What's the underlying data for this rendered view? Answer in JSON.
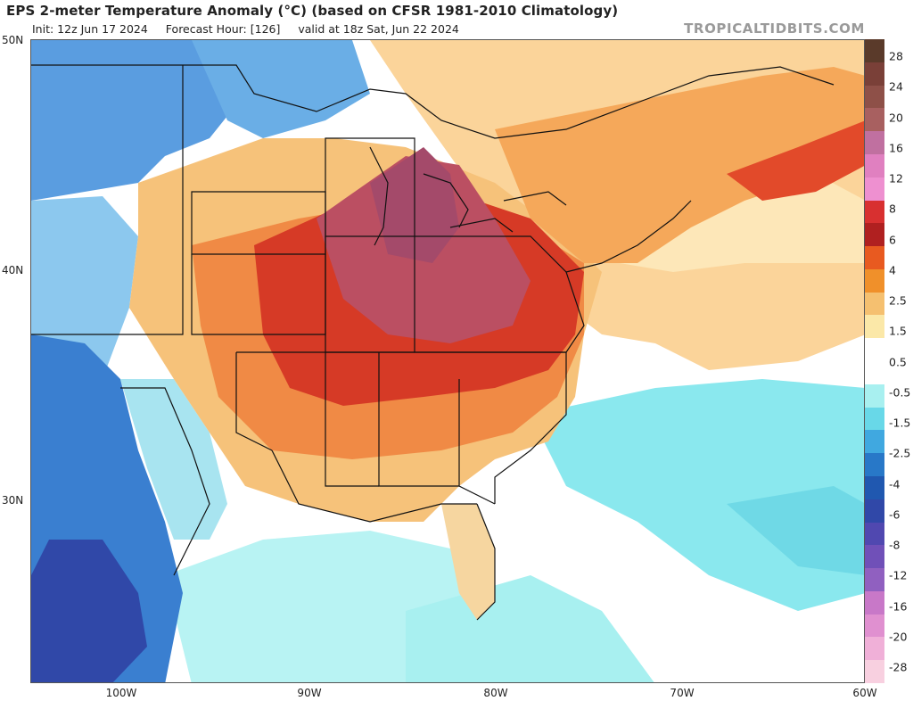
{
  "header": {
    "title": "EPS 2-meter Temperature Anomaly (°C) (based on CFSR 1981-2010 Climatology)",
    "init": "Init: 12z Jun 17 2024",
    "forecast_hour": "Forecast Hour: [126]",
    "valid": "valid at 18z Sat, Jun 22 2024",
    "site": "TROPICALTIDBITS.COM"
  },
  "axes": {
    "lat_labels": [
      "50N",
      "40N",
      "30N"
    ],
    "lon_labels": [
      "100W",
      "90W",
      "80W",
      "70W",
      "60W"
    ]
  },
  "colorbar": {
    "labels": [
      "28",
      "24",
      "20",
      "16",
      "12",
      "8",
      "6",
      "4",
      "2.5",
      "1.5",
      "0.5",
      "-0.5",
      "-1.5",
      "-2.5",
      "-4",
      "-6",
      "-8",
      "-12",
      "-16",
      "-20",
      "-28"
    ],
    "colors": [
      "#5a3a2a",
      "#7a4038",
      "#8e5048",
      "#a86060",
      "#c070a0",
      "#e080c0",
      "#ee90d0",
      "#d83030",
      "#b02020",
      "#e85a20",
      "#f0902a",
      "#f5c070",
      "#fbe8a8",
      "#ffffff",
      "#ffffff",
      "#a8f0f0",
      "#68d8e8",
      "#40a8e0",
      "#2878c8",
      "#2058b0",
      "#3048a8",
      "#5048b0",
      "#7050b8",
      "#9060c0",
      "#c878c8",
      "#e090d0",
      "#f0b0d8",
      "#f8d0e0"
    ]
  },
  "map_colors": {
    "ocean_warm": "#fbd49a",
    "neutral": "#ffffff",
    "cool": "#8ae8ee",
    "cold": "#3a7fd0",
    "warm": "#f07a3a",
    "hot": "#d03020",
    "very_hot": "#b8506a",
    "border": "#111111"
  }
}
